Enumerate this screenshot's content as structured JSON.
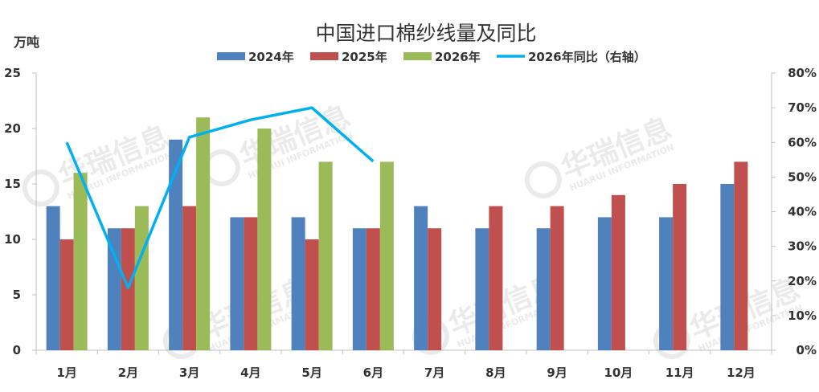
{
  "chart_data": {
    "type": "bar",
    "title": "中国进口棉纱线量及同比",
    "y_unit": "万吨",
    "categories": [
      "1月",
      "2月",
      "3月",
      "4月",
      "5月",
      "6月",
      "7月",
      "8月",
      "9月",
      "10月",
      "11月",
      "12月"
    ],
    "series": [
      {
        "name": "2024年",
        "color": "#4f81bd",
        "values": [
          13,
          11,
          19,
          12,
          12,
          11,
          13,
          11,
          11,
          12,
          12,
          15
        ]
      },
      {
        "name": "2025年",
        "color": "#c0504d",
        "values": [
          10,
          11,
          13,
          12,
          10,
          11,
          11,
          13,
          13,
          14,
          15,
          17
        ]
      },
      {
        "name": "2026年",
        "color": "#9bbb59",
        "values": [
          16,
          13,
          21,
          20,
          17,
          17,
          null,
          null,
          null,
          null,
          null,
          null
        ]
      }
    ],
    "line_series": {
      "name": "2026年同比（右轴）",
      "color": "#00b0f0",
      "axis": "right",
      "values": [
        60,
        18,
        61.5,
        66.5,
        70,
        54.5,
        null,
        null,
        null,
        null,
        null,
        null
      ]
    },
    "ylim": [
      0,
      25
    ],
    "yticks": [
      "0",
      "5",
      "10",
      "15",
      "20",
      "25"
    ],
    "y2lim": [
      0,
      80
    ],
    "y2ticks": [
      "0%",
      "10%",
      "20%",
      "30%",
      "40%",
      "50%",
      "60%",
      "70%",
      "80%"
    ],
    "legend_position": "top",
    "grid": false,
    "watermark": {
      "text": "华瑞信息",
      "subtext": "HUARUI INFORMATION"
    }
  }
}
